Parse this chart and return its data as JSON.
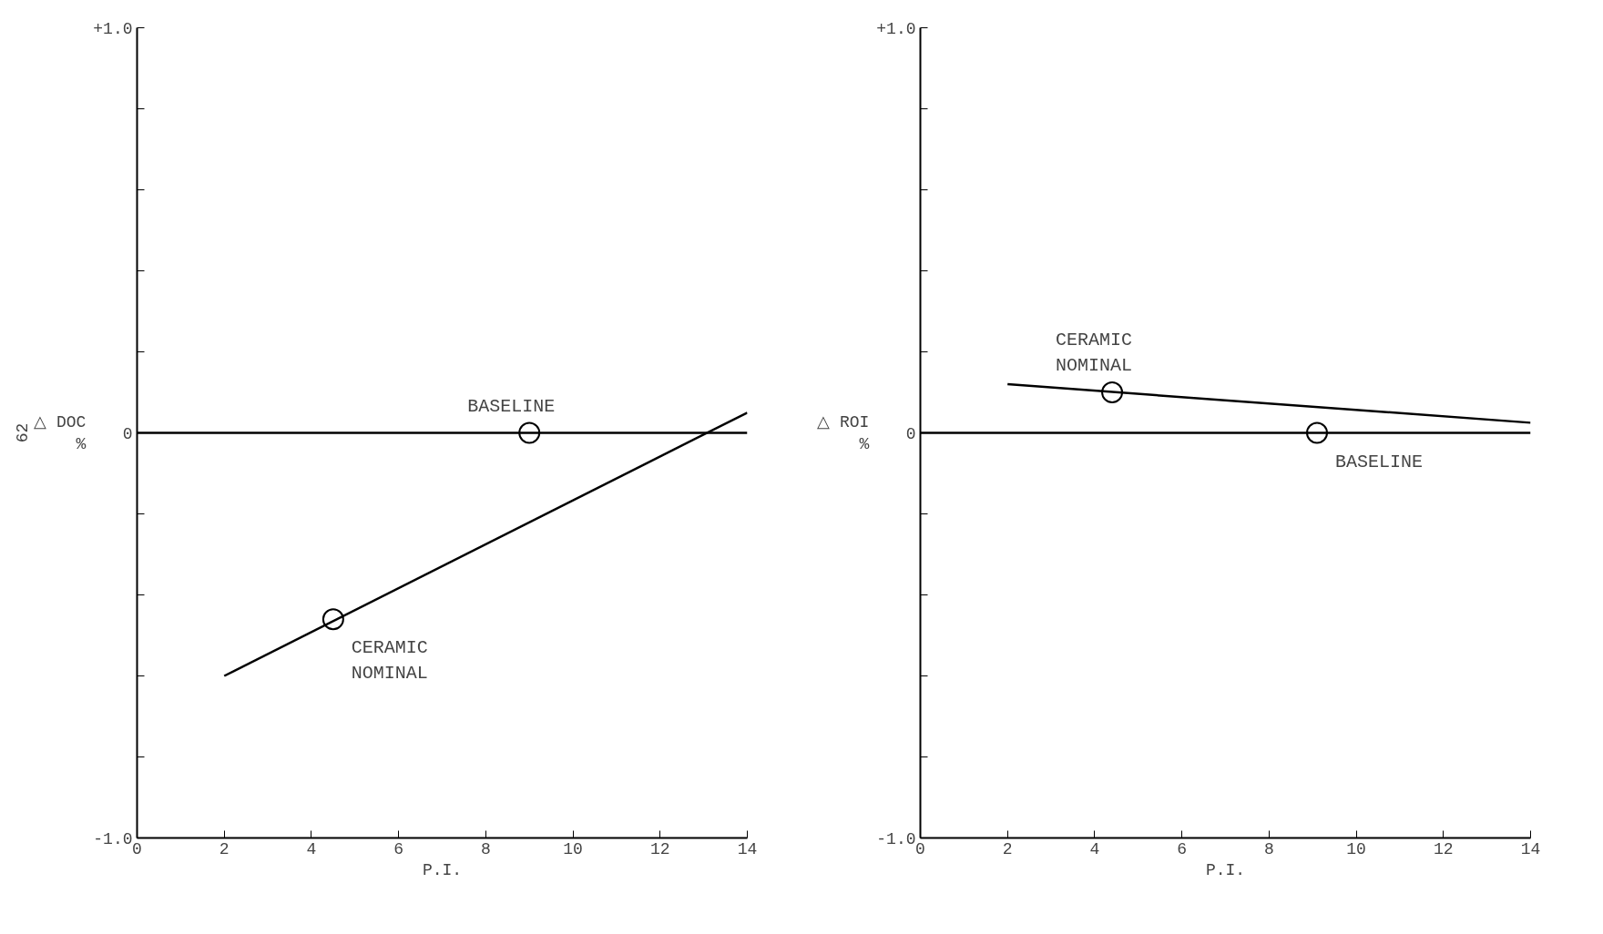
{
  "chart_data": [
    {
      "type": "line",
      "xlabel": "P.I.",
      "ylabel": "△ DOC\n%",
      "xlim": [
        0,
        14
      ],
      "ylim": [
        -1.0,
        1.0
      ],
      "grid": false,
      "xticks": [
        0,
        2,
        4,
        6,
        8,
        10,
        12,
        14
      ],
      "yticks": [
        {
          "value": -1.0,
          "label": "-1.0"
        },
        {
          "value": -0.8,
          "label": null
        },
        {
          "value": -0.6,
          "label": null
        },
        {
          "value": -0.4,
          "label": null
        },
        {
          "value": -0.2,
          "label": null
        },
        0,
        {
          "value": 0.2,
          "label": null
        },
        {
          "value": 0.4,
          "label": null
        },
        {
          "value": 0.6,
          "label": null
        },
        {
          "value": 0.8,
          "label": null
        },
        {
          "value": 1.0,
          "label": "+1.0"
        }
      ],
      "series": [
        {
          "color": "#000000",
          "x": [
            0,
            14
          ],
          "values": [
            0,
            0
          ]
        },
        {
          "color": "#000000",
          "x": [
            2,
            14
          ],
          "values": [
            -0.6,
            0.05
          ]
        },
        {
          "type": "scatter",
          "marker": "circle",
          "color": "#000000",
          "x": [
            9,
            4.5
          ],
          "values": [
            0,
            -0.46
          ]
        }
      ],
      "annotations": [
        {
          "text": "BASELINE",
          "x": 9,
          "y": 0
        },
        {
          "text": "CERAMIC NOMINAL",
          "x": 4.5,
          "y": -0.46
        },
        "62"
      ]
    },
    {
      "type": "line",
      "xlabel": "P.I.",
      "ylabel": "△ ROI\n%",
      "xlim": [
        0,
        14
      ],
      "ylim": [
        -1.0,
        1.0
      ],
      "grid": false,
      "xticks": [
        0,
        2,
        4,
        6,
        8,
        10,
        12,
        14
      ],
      "yticks": [
        {
          "value": -1.0,
          "label": "-1.0"
        },
        {
          "value": -0.8,
          "label": null
        },
        {
          "value": -0.6,
          "label": null
        },
        {
          "value": -0.4,
          "label": null
        },
        {
          "value": -0.2,
          "label": null
        },
        0,
        {
          "value": 0.2,
          "label": null
        },
        {
          "value": 0.4,
          "label": null
        },
        {
          "value": 0.6,
          "label": null
        },
        {
          "value": 0.8,
          "label": null
        },
        {
          "value": 1.0,
          "label": "+1.0"
        }
      ],
      "series": [
        {
          "color": "#000000",
          "x": [
            0,
            14
          ],
          "values": [
            0,
            0
          ]
        },
        {
          "color": "#000000",
          "x": [
            2,
            14
          ],
          "values": [
            0.12,
            0.025
          ]
        },
        {
          "type": "scatter",
          "marker": "circle",
          "color": "#000000",
          "x": [
            4.4,
            9.1
          ],
          "values": [
            0.1,
            0
          ]
        }
      ],
      "annotations": [
        {
          "text": "CERAMIC NOMINAL",
          "x": 4.4,
          "y": 0.1
        },
        {
          "text": "BASELINE",
          "x": 9.1,
          "y": 0
        }
      ]
    }
  ]
}
